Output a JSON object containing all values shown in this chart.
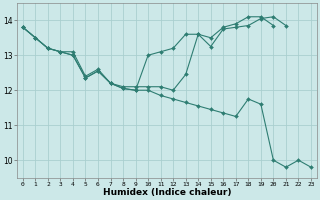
{
  "xlabel": "Humidex (Indice chaleur)",
  "bg_color": "#cce8e8",
  "grid_color": "#aacfcf",
  "line_color": "#2e7d72",
  "xlim": [
    -0.5,
    23.5
  ],
  "ylim": [
    9.5,
    14.5
  ],
  "yticks": [
    10,
    11,
    12,
    13,
    14
  ],
  "xticks": [
    0,
    1,
    2,
    3,
    4,
    5,
    6,
    7,
    8,
    9,
    10,
    11,
    12,
    13,
    14,
    15,
    16,
    17,
    18,
    19,
    20,
    21,
    22,
    23
  ],
  "series": [
    {
      "x": [
        0,
        1,
        2,
        3,
        4,
        5,
        6,
        7,
        8,
        9,
        10,
        11,
        12,
        13,
        14,
        15,
        16,
        17,
        18,
        19,
        20,
        21
      ],
      "y": [
        13.8,
        13.5,
        13.2,
        13.1,
        13.1,
        12.4,
        12.6,
        12.2,
        12.1,
        12.1,
        12.1,
        12.1,
        12.0,
        12.45,
        13.6,
        13.25,
        13.75,
        13.8,
        13.85,
        14.05,
        14.1,
        13.85
      ]
    },
    {
      "x": [
        0,
        1,
        2,
        3,
        4,
        5,
        6,
        7,
        8,
        9,
        10,
        11,
        12,
        13,
        14,
        15,
        16,
        17,
        18,
        19,
        20,
        21,
        22,
        23
      ],
      "y": [
        13.8,
        13.5,
        13.2,
        13.1,
        13.0,
        12.35,
        12.55,
        12.2,
        12.05,
        12.0,
        12.0,
        11.85,
        11.75,
        11.65,
        11.55,
        11.45,
        11.35,
        11.25,
        11.75,
        11.6,
        10.0,
        9.8,
        10.0,
        9.8
      ]
    },
    {
      "x": [
        0,
        1,
        2,
        3,
        4,
        5,
        6,
        7,
        8,
        9,
        10,
        11,
        12,
        13,
        14,
        15,
        16,
        17,
        18,
        19,
        20
      ],
      "y": [
        13.8,
        13.5,
        13.2,
        13.1,
        13.0,
        12.35,
        12.55,
        12.2,
        12.05,
        12.0,
        13.0,
        13.1,
        13.2,
        13.6,
        13.6,
        13.5,
        13.8,
        13.9,
        14.1,
        14.1,
        13.85
      ]
    }
  ]
}
